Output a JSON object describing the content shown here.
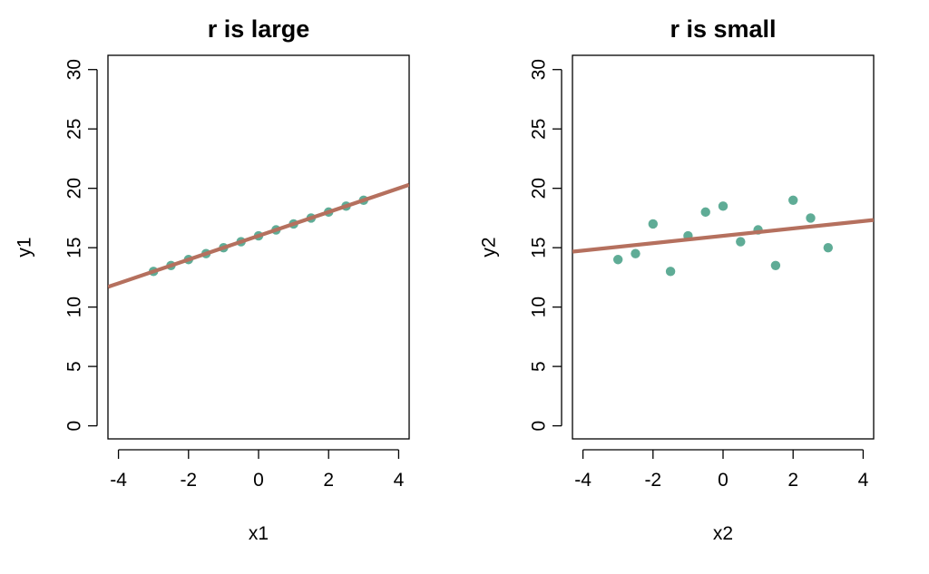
{
  "chart_data": [
    {
      "type": "scatter",
      "title": "r is large",
      "xlabel": "x1",
      "ylabel": "y1",
      "xlim": [
        -4.3,
        4.3
      ],
      "ylim": [
        -1.1,
        31.2
      ],
      "xticks": [
        -4,
        -2,
        0,
        2,
        4
      ],
      "yticks": [
        0,
        5,
        10,
        15,
        20,
        25,
        30
      ],
      "grid": false,
      "legend": "none",
      "points": {
        "x": [
          -3,
          -2.5,
          -2,
          -1.5,
          -1,
          -0.5,
          0,
          0.5,
          1,
          1.5,
          2,
          2.5,
          3
        ],
        "y": [
          13,
          13.5,
          14,
          14.5,
          15,
          15.5,
          16,
          16.5,
          17,
          17.5,
          18,
          18.5,
          19
        ]
      },
      "fit_line": {
        "intercept": 16,
        "slope": 1.0
      },
      "colors": {
        "points": "#5fac96",
        "line": "#b5705e"
      }
    },
    {
      "type": "scatter",
      "title": "r is small",
      "xlabel": "x2",
      "ylabel": "y2",
      "xlim": [
        -4.3,
        4.3
      ],
      "ylim": [
        -1.1,
        31.2
      ],
      "xticks": [
        -4,
        -2,
        0,
        2,
        4
      ],
      "yticks": [
        0,
        5,
        10,
        15,
        20,
        25,
        30
      ],
      "grid": false,
      "legend": "none",
      "points": {
        "x": [
          -3,
          -2.5,
          -2,
          -1.5,
          -1,
          -0.5,
          0,
          0.5,
          1,
          1.5,
          2,
          2.5,
          3
        ],
        "y": [
          14,
          14.5,
          17,
          13,
          16,
          18,
          18.5,
          15.5,
          16.5,
          13.5,
          19,
          17.5,
          15
        ]
      },
      "fit_line": {
        "intercept": 16,
        "slope": 0.31
      },
      "colors": {
        "points": "#5fac96",
        "line": "#b5705e"
      }
    }
  ]
}
